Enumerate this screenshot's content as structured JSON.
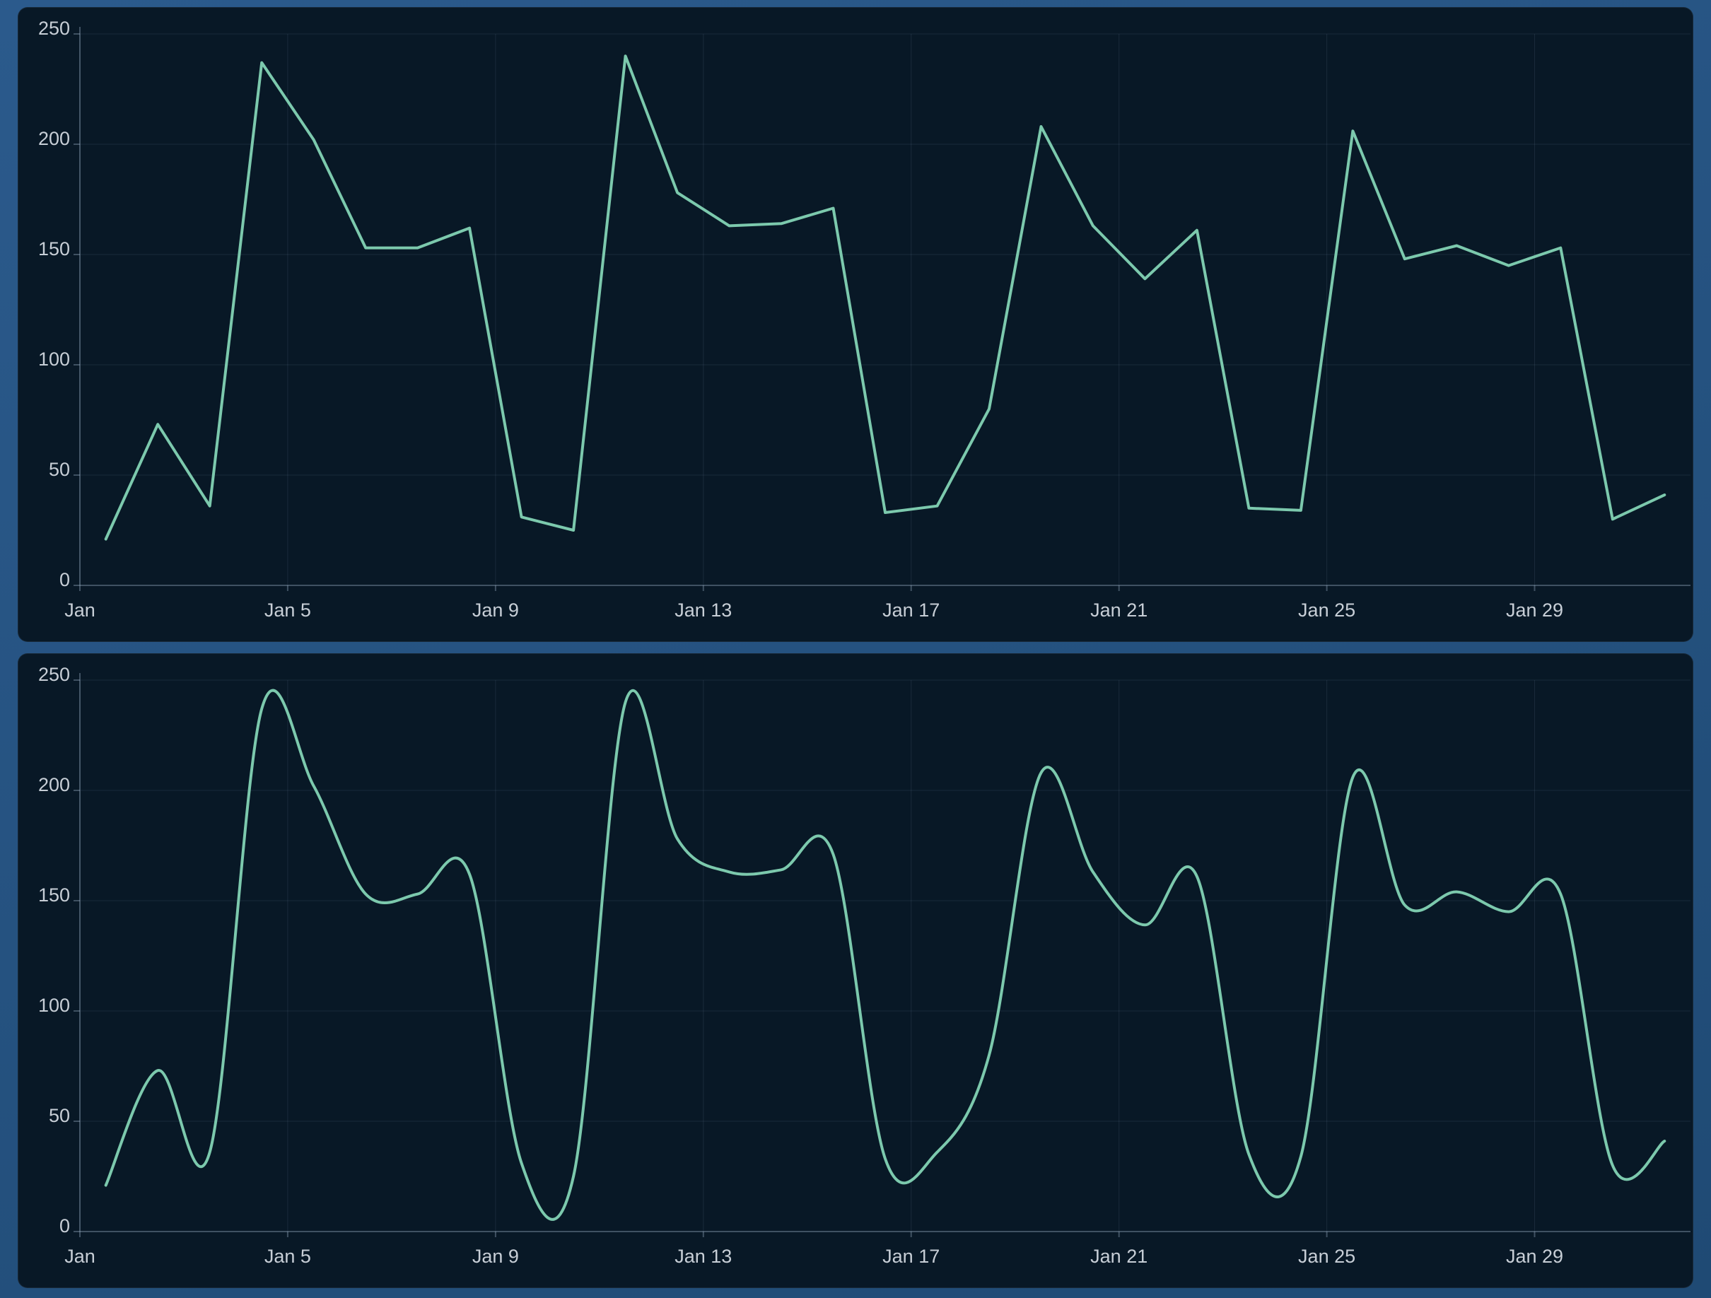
{
  "page": {
    "background_top": "#2b5a8c",
    "background_bottom": "#1f4a74"
  },
  "panel": {
    "background": "#081826",
    "border_color": "rgba(170,200,230,0.10)"
  },
  "axes": {
    "label_color": "#c7ced6",
    "grid_color": "rgba(148,170,192,0.13)",
    "axis_color": "rgba(156,176,196,0.38)",
    "y_tick_labels": [
      "250",
      "200",
      "150",
      "100",
      "50",
      "0"
    ],
    "y_tick_values": [
      250,
      200,
      150,
      100,
      50,
      0
    ],
    "x_tick_labels": [
      "Jan",
      "Jan 5",
      "Jan 9",
      "Jan 13",
      "Jan 17",
      "Jan 21",
      "Jan 25",
      "Jan 29"
    ],
    "x_tick_day_index": [
      0,
      4,
      8,
      12,
      16,
      20,
      24,
      28
    ]
  },
  "chart_data": [
    {
      "type": "line",
      "title": "",
      "interpolation": "linear",
      "line_color": "#7cc9ad",
      "ylim": [
        0,
        250
      ],
      "xlabel": "",
      "ylabel": "",
      "grid": true,
      "legend": false,
      "x": [
        "Jan 1",
        "Jan 2",
        "Jan 3",
        "Jan 4",
        "Jan 5",
        "Jan 6",
        "Jan 7",
        "Jan 8",
        "Jan 9",
        "Jan 10",
        "Jan 11",
        "Jan 12",
        "Jan 13",
        "Jan 14",
        "Jan 15",
        "Jan 16",
        "Jan 17",
        "Jan 18",
        "Jan 19",
        "Jan 20",
        "Jan 21",
        "Jan 22",
        "Jan 23",
        "Jan 24",
        "Jan 25",
        "Jan 26",
        "Jan 27",
        "Jan 28",
        "Jan 29",
        "Jan 30",
        "Jan 31"
      ],
      "values": [
        21,
        73,
        36,
        237,
        202,
        153,
        153,
        162,
        31,
        25,
        240,
        178,
        163,
        164,
        171,
        33,
        36,
        80,
        208,
        163,
        139,
        161,
        35,
        34,
        206,
        148,
        154,
        145,
        153,
        30,
        41
      ]
    },
    {
      "type": "line",
      "title": "",
      "interpolation": "smooth",
      "line_color": "#7cc9ad",
      "ylim": [
        0,
        250
      ],
      "xlabel": "",
      "ylabel": "",
      "grid": true,
      "legend": false,
      "x": [
        "Jan 1",
        "Jan 2",
        "Jan 3",
        "Jan 4",
        "Jan 5",
        "Jan 6",
        "Jan 7",
        "Jan 8",
        "Jan 9",
        "Jan 10",
        "Jan 11",
        "Jan 12",
        "Jan 13",
        "Jan 14",
        "Jan 15",
        "Jan 16",
        "Jan 17",
        "Jan 18",
        "Jan 19",
        "Jan 20",
        "Jan 21",
        "Jan 22",
        "Jan 23",
        "Jan 24",
        "Jan 25",
        "Jan 26",
        "Jan 27",
        "Jan 28",
        "Jan 29",
        "Jan 30",
        "Jan 31"
      ],
      "values": [
        21,
        73,
        36,
        237,
        202,
        153,
        153,
        162,
        31,
        25,
        240,
        178,
        163,
        164,
        171,
        33,
        36,
        80,
        208,
        163,
        139,
        161,
        35,
        34,
        206,
        148,
        154,
        145,
        153,
        30,
        41
      ]
    }
  ]
}
